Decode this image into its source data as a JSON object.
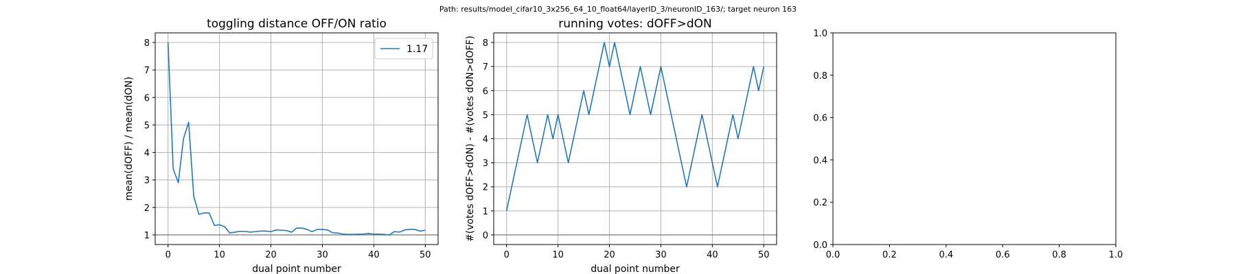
{
  "figure": {
    "suptitle": "Path: results/model_cifar10_3x256_64_10_float64/layerID_3/neuronID_163/; target neuron 163"
  },
  "colors": {
    "line": "#1f77b4",
    "grid": "#b0b0b0",
    "refline": "#808080",
    "axes": "#000000"
  },
  "chart_data": [
    {
      "type": "line",
      "title": "toggling distance OFF/ON ratio",
      "xlabel": "dual point number",
      "ylabel": "mean(dOFF) / mean(dON)",
      "xlim": [
        -2.5,
        52.5
      ],
      "ylim": [
        0.65,
        8.35
      ],
      "xticks": [
        0,
        10,
        20,
        30,
        40,
        50
      ],
      "yticks": [
        1,
        2,
        3,
        4,
        5,
        6,
        7,
        8
      ],
      "grid": true,
      "hline": 1,
      "legend": {
        "loc": "upper right",
        "entries": [
          "1.17"
        ]
      },
      "series": [
        {
          "name": "1.17",
          "x": [
            0,
            1,
            2,
            3,
            4,
            5,
            6,
            7,
            8,
            9,
            10,
            11,
            12,
            13,
            14,
            15,
            16,
            17,
            18,
            19,
            20,
            21,
            22,
            23,
            24,
            25,
            26,
            27,
            28,
            29,
            30,
            31,
            32,
            33,
            34,
            35,
            36,
            37,
            38,
            39,
            40,
            41,
            42,
            43,
            44,
            45,
            46,
            47,
            48,
            49,
            50
          ],
          "y": [
            8.0,
            3.4,
            2.9,
            4.5,
            5.1,
            2.4,
            1.75,
            1.8,
            1.8,
            1.35,
            1.37,
            1.3,
            1.07,
            1.1,
            1.13,
            1.13,
            1.1,
            1.12,
            1.14,
            1.14,
            1.12,
            1.18,
            1.17,
            1.16,
            1.1,
            1.25,
            1.25,
            1.2,
            1.12,
            1.2,
            1.2,
            1.18,
            1.08,
            1.07,
            1.03,
            1.02,
            1.02,
            1.03,
            1.03,
            1.05,
            1.03,
            1.03,
            1.02,
            1.0,
            1.12,
            1.1,
            1.18,
            1.2,
            1.2,
            1.14,
            1.17
          ]
        }
      ]
    },
    {
      "type": "line",
      "title": "running votes: dOFF>dON",
      "xlabel": "dual point number",
      "ylabel": "#(votes dOFF>dON) - #(votes dON>dOFF)",
      "xlim": [
        -2.5,
        52.5
      ],
      "ylim": [
        -0.4,
        8.4
      ],
      "xticks": [
        0,
        10,
        20,
        30,
        40,
        50
      ],
      "yticks": [
        0,
        1,
        2,
        3,
        4,
        5,
        6,
        7,
        8
      ],
      "grid": true,
      "hline": 0,
      "series": [
        {
          "x": [
            0,
            4,
            6,
            8,
            9,
            10,
            12,
            15,
            16,
            19,
            20,
            21,
            24,
            26,
            28,
            30,
            35,
            38,
            41,
            44,
            45,
            48,
            49,
            50
          ],
          "y": [
            1,
            5,
            3,
            5,
            4,
            5,
            3,
            6,
            5,
            8,
            7,
            8,
            5,
            7,
            5,
            7,
            2,
            5,
            2,
            5,
            4,
            7,
            6,
            7
          ]
        }
      ]
    },
    {
      "type": "line",
      "xlim": [
        0,
        1
      ],
      "ylim": [
        0,
        1
      ],
      "xticks": [
        0.0,
        0.2,
        0.4,
        0.6,
        0.8,
        1.0
      ],
      "yticks": [
        0.0,
        0.2,
        0.4,
        0.6,
        0.8,
        1.0
      ],
      "tick_labels": [
        "0.0",
        "0.2",
        "0.4",
        "0.6",
        "0.8",
        "1.0"
      ],
      "grid": false,
      "series": []
    }
  ]
}
